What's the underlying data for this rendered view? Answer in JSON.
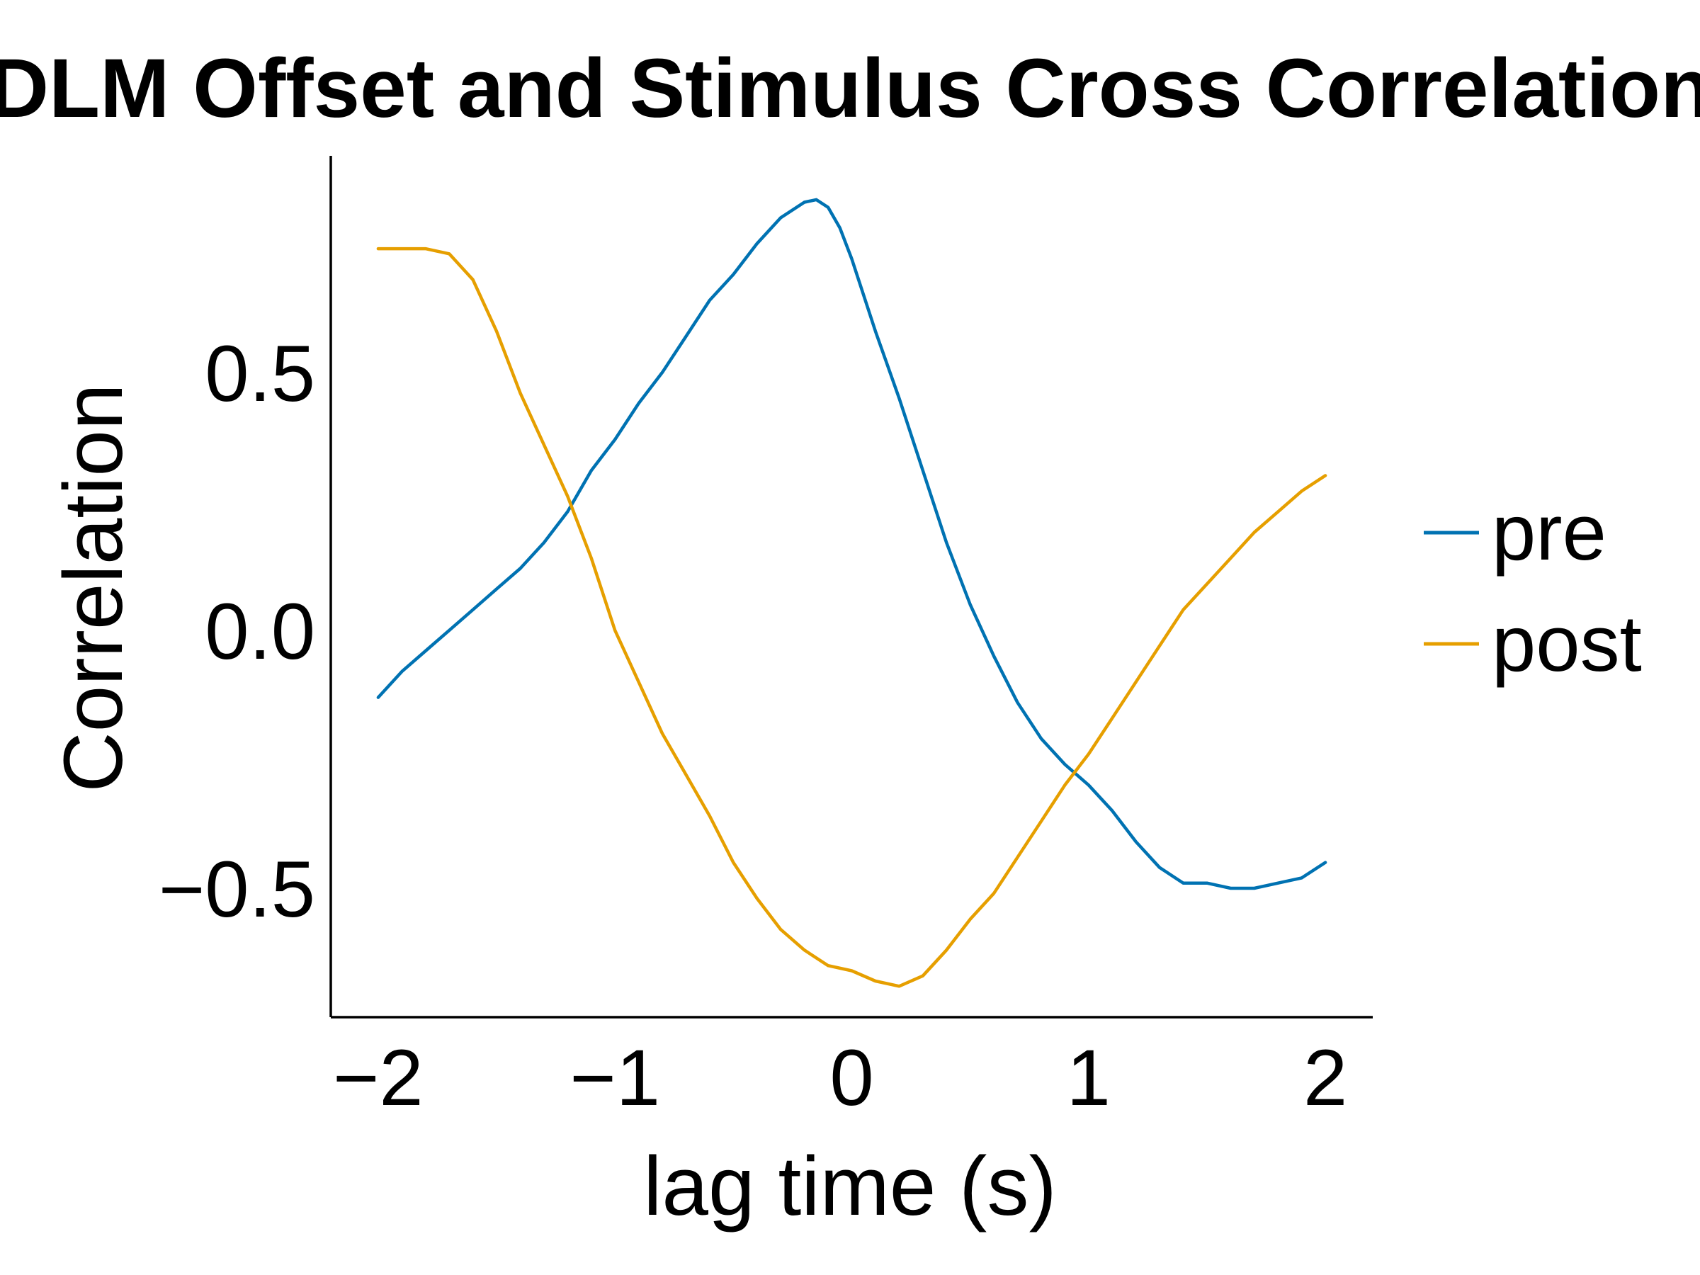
{
  "chart_data": {
    "type": "line",
    "title": "DLM Offset and Stimulus Cross Correlation",
    "xlabel": "lag time (s)",
    "ylabel": "Correlation",
    "xlim": [
      -2.2,
      2.2
    ],
    "ylim": [
      -0.75,
      0.92
    ],
    "xticks": [
      -2,
      -1,
      0,
      1,
      2
    ],
    "xtick_labels": [
      "−2",
      "−1",
      "0",
      "1",
      "2"
    ],
    "yticks": [
      -0.5,
      0.0,
      0.5
    ],
    "ytick_labels": [
      "−0.5",
      "0.0",
      "0.5"
    ],
    "grid": false,
    "legend_position": "right",
    "series": [
      {
        "name": "pre",
        "color": "#0072B2",
        "x": [
          -2.0,
          -1.9,
          -1.8,
          -1.7,
          -1.6,
          -1.5,
          -1.4,
          -1.3,
          -1.2,
          -1.1,
          -1.0,
          -0.9,
          -0.8,
          -0.7,
          -0.6,
          -0.5,
          -0.4,
          -0.3,
          -0.2,
          -0.15,
          -0.1,
          -0.05,
          0.0,
          0.1,
          0.2,
          0.3,
          0.4,
          0.5,
          0.6,
          0.7,
          0.8,
          0.9,
          1.0,
          1.1,
          1.2,
          1.3,
          1.4,
          1.5,
          1.6,
          1.7,
          1.8,
          1.9,
          2.0
        ],
        "y": [
          -0.13,
          -0.08,
          -0.04,
          0.0,
          0.04,
          0.08,
          0.12,
          0.17,
          0.23,
          0.31,
          0.37,
          0.44,
          0.5,
          0.57,
          0.64,
          0.69,
          0.75,
          0.8,
          0.83,
          0.835,
          0.82,
          0.78,
          0.72,
          0.58,
          0.45,
          0.31,
          0.17,
          0.05,
          -0.05,
          -0.14,
          -0.21,
          -0.26,
          -0.3,
          -0.35,
          -0.41,
          -0.46,
          -0.49,
          -0.49,
          -0.5,
          -0.5,
          -0.49,
          -0.48,
          -0.45
        ]
      },
      {
        "name": "post",
        "color": "#E69F00",
        "x": [
          -2.0,
          -1.9,
          -1.8,
          -1.7,
          -1.6,
          -1.5,
          -1.4,
          -1.3,
          -1.2,
          -1.1,
          -1.0,
          -0.9,
          -0.8,
          -0.7,
          -0.6,
          -0.5,
          -0.4,
          -0.3,
          -0.2,
          -0.1,
          0.0,
          0.1,
          0.2,
          0.3,
          0.4,
          0.5,
          0.6,
          0.7,
          0.8,
          0.9,
          1.0,
          1.1,
          1.2,
          1.3,
          1.4,
          1.5,
          1.6,
          1.7,
          1.8,
          1.9,
          2.0
        ],
        "y": [
          0.74,
          0.74,
          0.74,
          0.73,
          0.68,
          0.58,
          0.46,
          0.36,
          0.26,
          0.14,
          0.0,
          -0.1,
          -0.2,
          -0.28,
          -0.36,
          -0.45,
          -0.52,
          -0.58,
          -0.62,
          -0.65,
          -0.66,
          -0.68,
          -0.69,
          -0.67,
          -0.62,
          -0.56,
          -0.51,
          -0.44,
          -0.37,
          -0.3,
          -0.24,
          -0.17,
          -0.1,
          -0.03,
          0.04,
          0.09,
          0.14,
          0.19,
          0.23,
          0.27,
          0.3
        ]
      }
    ]
  }
}
